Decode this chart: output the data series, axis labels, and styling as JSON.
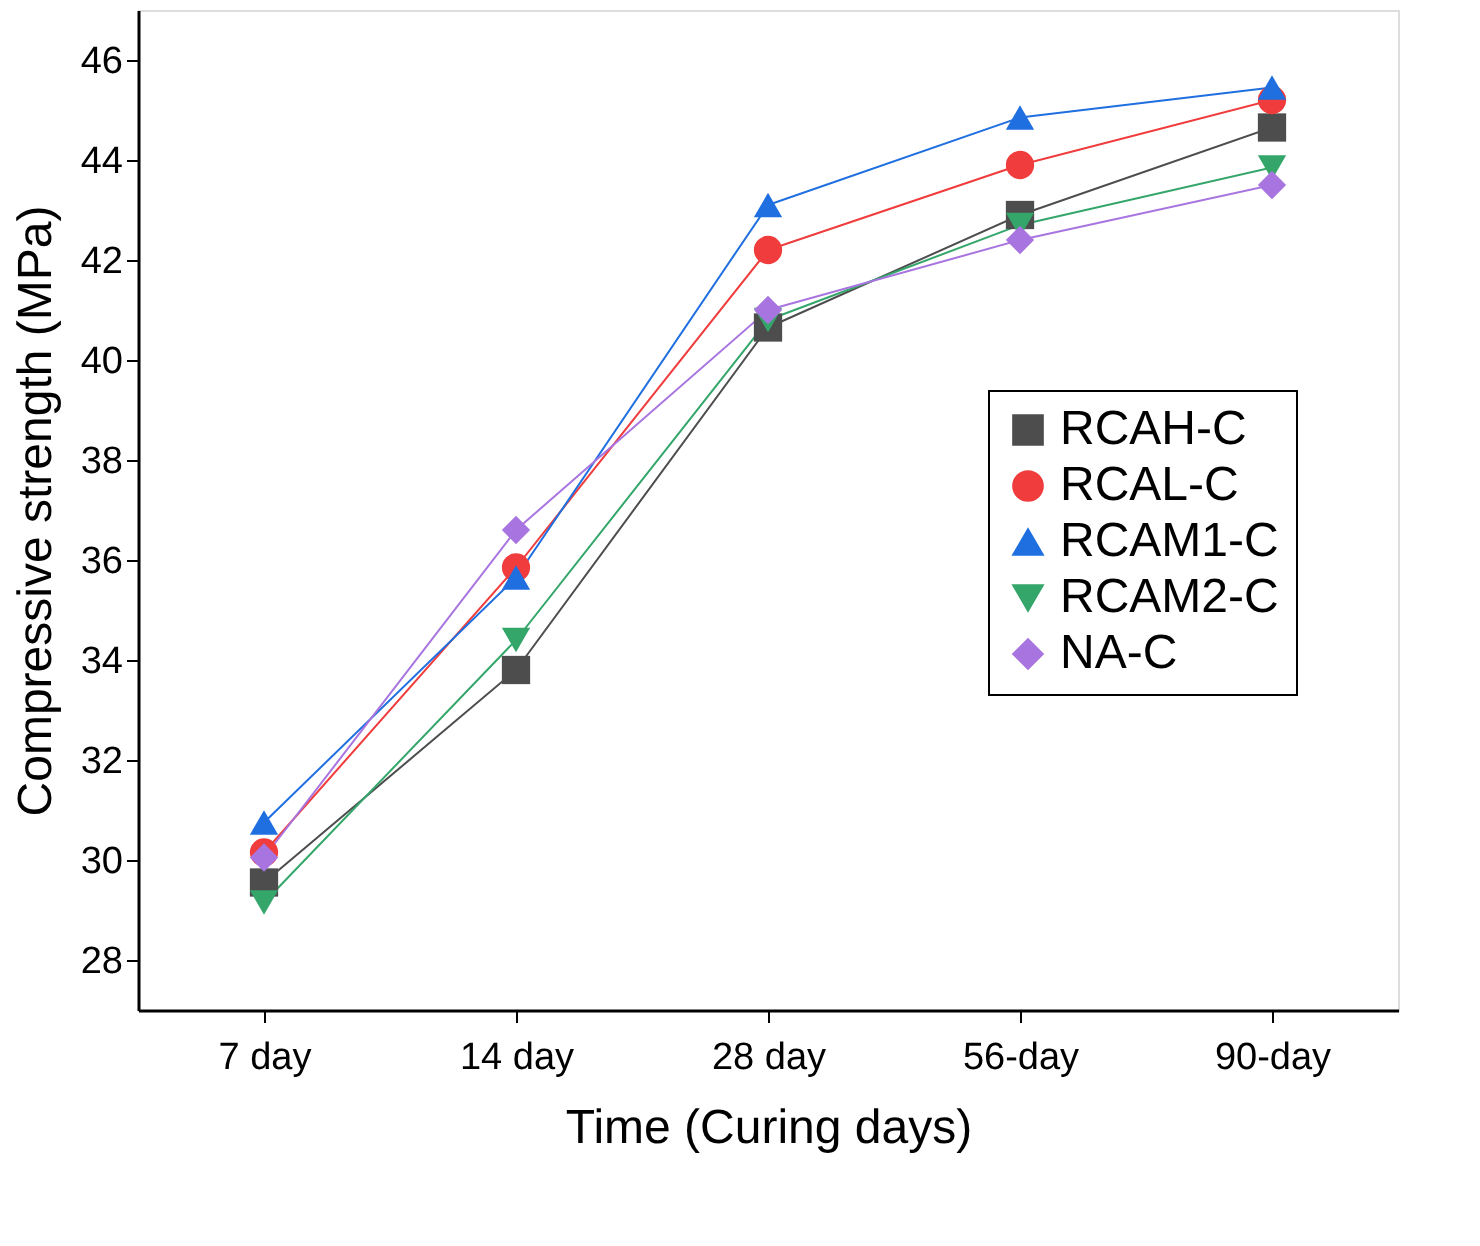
{
  "chart_data": {
    "type": "line",
    "xlabel": "Time (Curing days)",
    "ylabel": "Compressive strength (MPa)",
    "categories": [
      "7 day",
      "14 day",
      "28 day",
      "56-day",
      "90-day"
    ],
    "series": [
      {
        "name": "RCAH-C",
        "color": "#4d4d4d",
        "marker": "square",
        "values": [
          29.55,
          33.8,
          40.65,
          42.9,
          44.65
        ]
      },
      {
        "name": "RCAL-C",
        "color": "#f03c3c",
        "marker": "circle",
        "values": [
          30.15,
          35.85,
          42.2,
          43.9,
          45.2
        ]
      },
      {
        "name": "RCAM1-C",
        "color": "#1f6fe0",
        "marker": "triangle",
        "values": [
          30.75,
          35.65,
          43.1,
          44.85,
          45.45
        ]
      },
      {
        "name": "RCAM2-C",
        "color": "#34a66a",
        "marker": "triangle-down",
        "values": [
          29.15,
          34.4,
          40.8,
          42.7,
          43.85
        ]
      },
      {
        "name": "NA-C",
        "color": "#a875e0",
        "marker": "diamond",
        "values": [
          30.05,
          36.6,
          41.0,
          42.4,
          43.5
        ]
      }
    ],
    "ylim": [
      27,
      47
    ],
    "yticks": [
      28,
      30,
      32,
      34,
      36,
      38,
      40,
      42,
      44,
      46
    ],
    "grid": false,
    "legend": "right",
    "line_style": "solid"
  }
}
